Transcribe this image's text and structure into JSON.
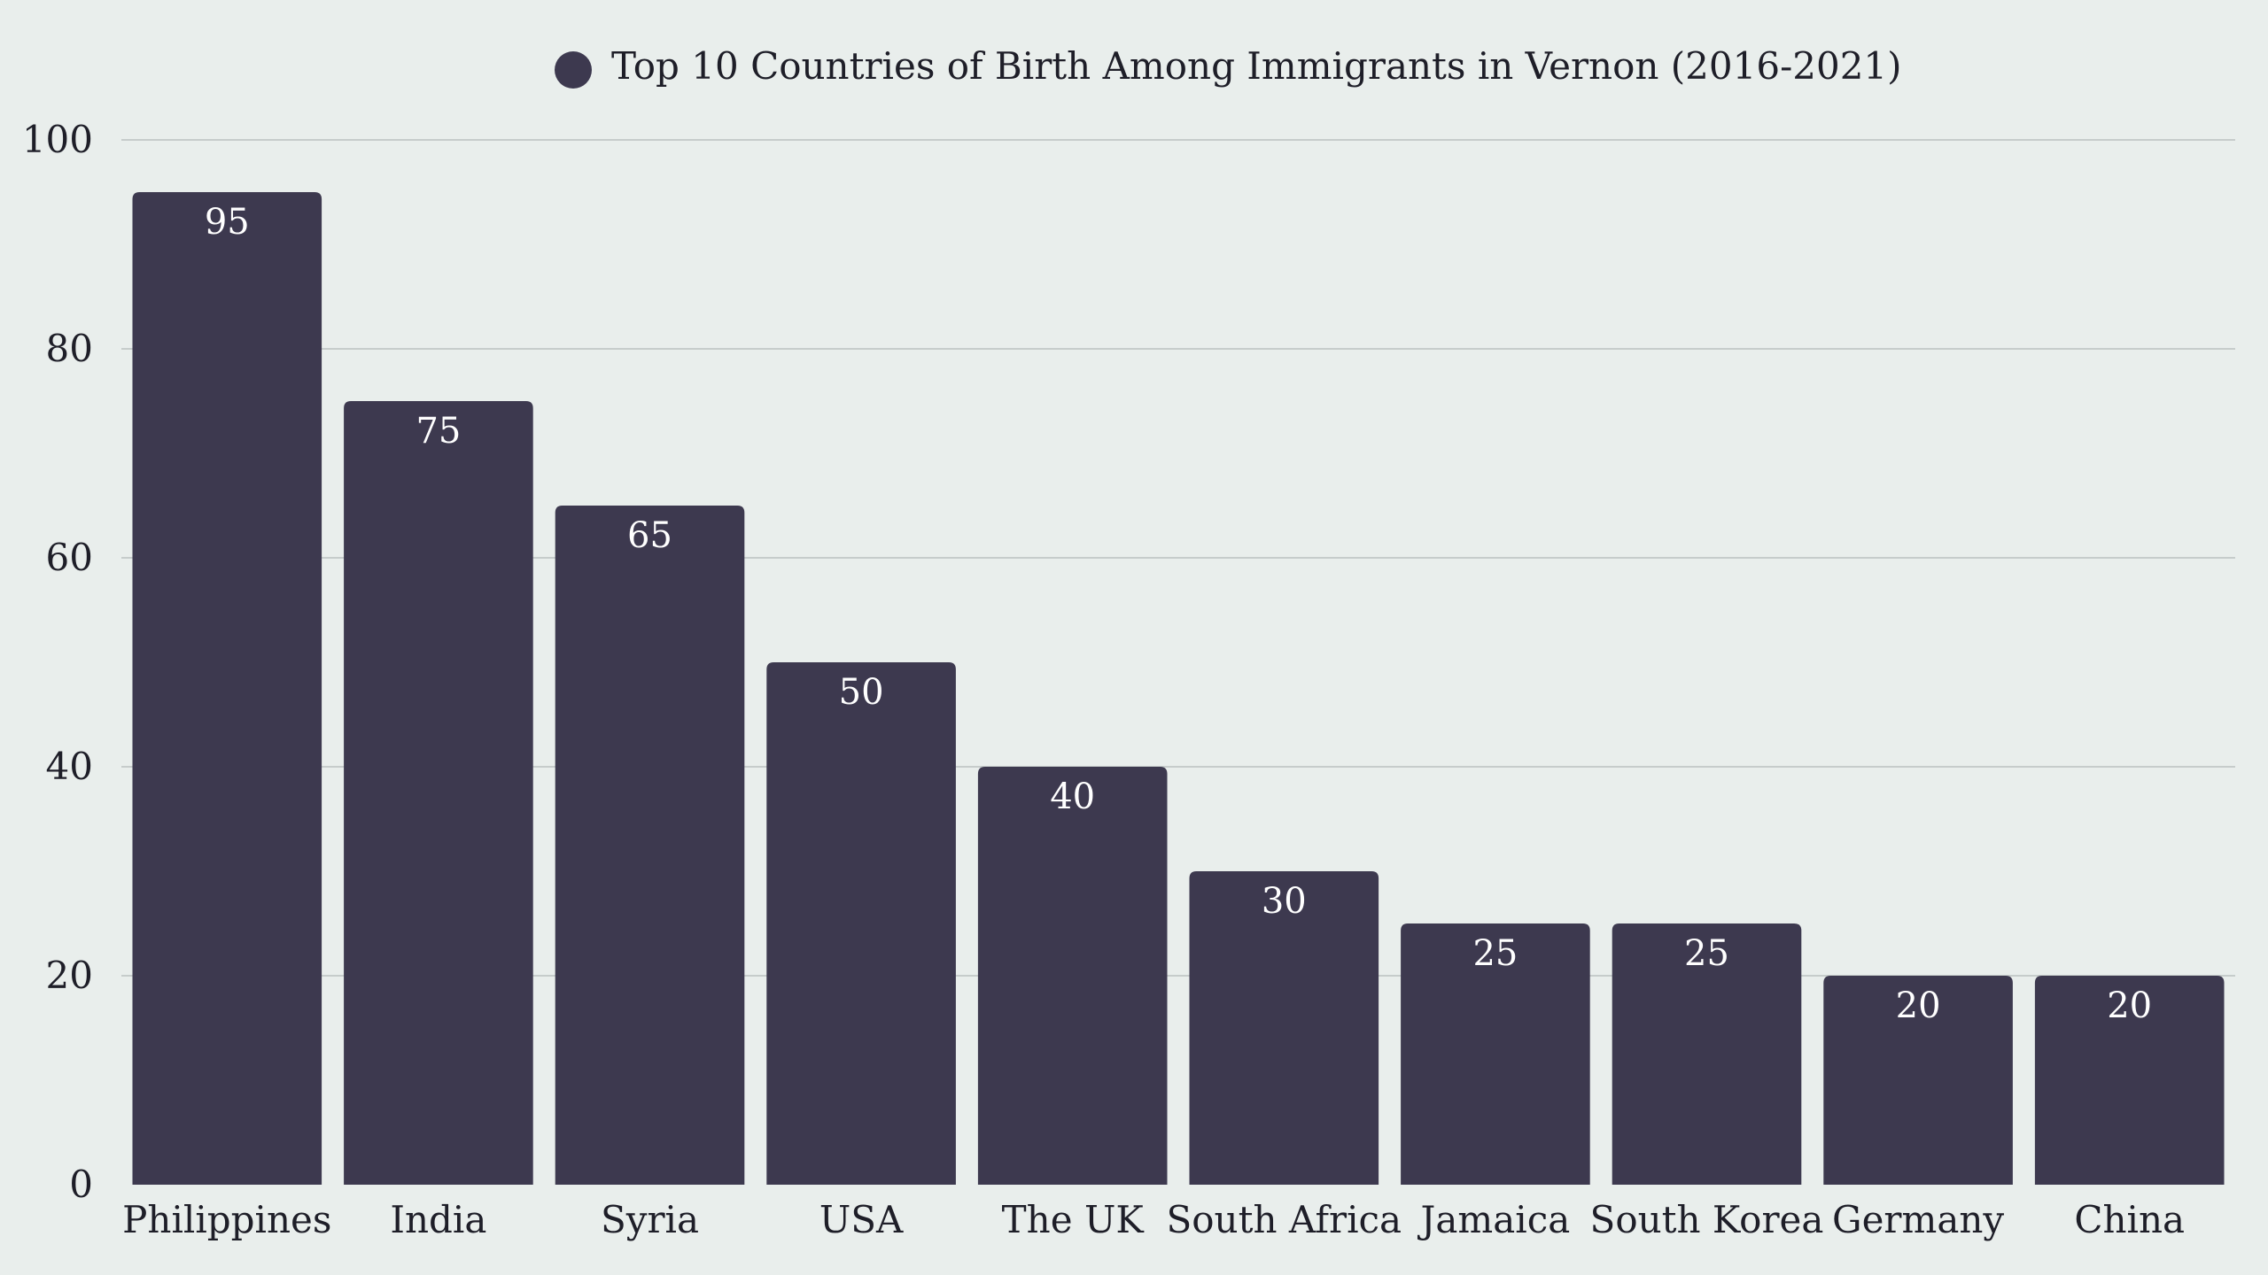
{
  "chart_data": {
    "type": "bar",
    "categories": [
      "Philippines",
      "India",
      "Syria",
      "USA",
      "The UK",
      "South Africa",
      "Jamaica",
      "South Korea",
      "Germany",
      "China"
    ],
    "series": [
      {
        "name": "Top 10 Countries of Birth Among Immigrants in Vernon (2016-2021)",
        "values": [
          95,
          75,
          65,
          50,
          40,
          30,
          25,
          25,
          20,
          20
        ]
      }
    ],
    "value_labels": [
      "95",
      "75",
      "65",
      "50",
      "40",
      "30",
      "25",
      "25",
      "20",
      "20"
    ],
    "ylim": [
      0,
      100
    ],
    "yticks": [
      "0",
      "20",
      "40",
      "60",
      "80",
      "100"
    ],
    "grid": true,
    "legend_position": "top-center",
    "colors": {
      "bar": "#3d394f",
      "background": "#e9eeec",
      "gridline": "#c6cccb"
    }
  }
}
